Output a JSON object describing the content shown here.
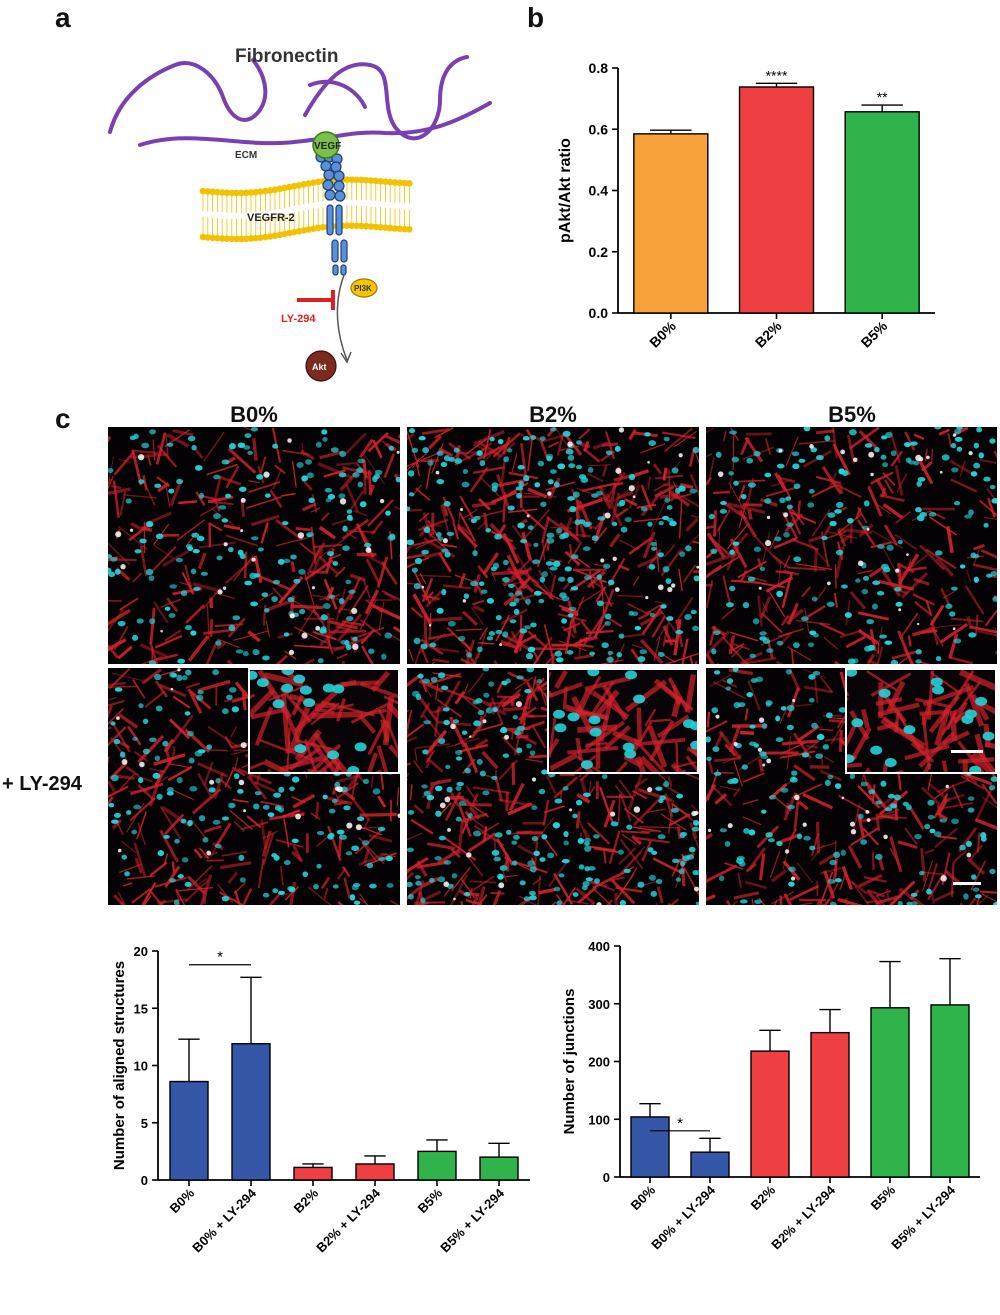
{
  "panels": {
    "a": "a",
    "b": "b",
    "c": "c"
  },
  "schematic": {
    "title": "Fibronectin",
    "ecm": "ECM",
    "vegf": "VEGF",
    "receptor": "VEGFR-2",
    "pi3k": "PI3K",
    "inhibitor": "LY-294",
    "akt": "Akt",
    "colors": {
      "fibers": "#7a3fb0",
      "membrane": "#f2c200",
      "vegf": "#7cc04a",
      "receptor": "#5b8fd6",
      "inhibitor": "#e02020",
      "akt": "#7a2b1e"
    }
  },
  "micrographs": {
    "columns": [
      "B0%",
      "B2%",
      "B5%"
    ],
    "row2_label": "+ LY-294",
    "colors": {
      "actin": "#d2222a",
      "nuclei": "#22d3d8"
    }
  },
  "chart_data": [
    {
      "id": "b",
      "type": "bar",
      "categories": [
        "B0%",
        "B2%",
        "B5%"
      ],
      "values": [
        0.585,
        0.738,
        0.657
      ],
      "errors": [
        0.012,
        0.012,
        0.022
      ],
      "significance": [
        "",
        "****",
        "**"
      ],
      "colors": [
        "#f7a23b",
        "#ee3f42",
        "#2fb34a"
      ],
      "xlabel": "",
      "ylabel": "pAkt/Akt ratio",
      "ylim": [
        0,
        0.8
      ],
      "yticks": [
        "0.0",
        "0.2",
        "0.4",
        "0.6",
        "0.8"
      ]
    },
    {
      "id": "c-left",
      "type": "bar",
      "categories": [
        "B0%",
        "B0% + LY-294",
        "B2%",
        "B2% + LY-294",
        "B5%",
        "B5% + LY-294"
      ],
      "values": [
        8.6,
        11.9,
        1.1,
        1.4,
        2.5,
        2.0
      ],
      "errors": [
        3.7,
        5.8,
        0.3,
        0.7,
        1.0,
        1.2
      ],
      "colors": [
        "#3656a8",
        "#3656a8",
        "#ee3f42",
        "#ee3f42",
        "#2fb34a",
        "#2fb34a"
      ],
      "comparison": {
        "from": 0,
        "to": 1,
        "label": "*"
      },
      "xlabel": "",
      "ylabel": "Number of aligned structures",
      "ylim": [
        0,
        20
      ],
      "yticks": [
        "0",
        "5",
        "10",
        "15",
        "20"
      ]
    },
    {
      "id": "c-right",
      "type": "bar",
      "categories": [
        "B0%",
        "B0% + LY-294",
        "B2%",
        "B2% + LY-294",
        "B5%",
        "B5% + LY-294"
      ],
      "values": [
        104,
        43,
        218,
        250,
        293,
        298
      ],
      "errors": [
        23,
        24,
        36,
        40,
        80,
        80
      ],
      "colors": [
        "#3656a8",
        "#3656a8",
        "#ee3f42",
        "#ee3f42",
        "#2fb34a",
        "#2fb34a"
      ],
      "comparison": {
        "from": 0,
        "to": 1,
        "label": "*"
      },
      "xlabel": "",
      "ylabel": "Number of junctions",
      "ylim": [
        0,
        400
      ],
      "yticks": [
        "0",
        "100",
        "200",
        "300",
        "400"
      ]
    }
  ]
}
